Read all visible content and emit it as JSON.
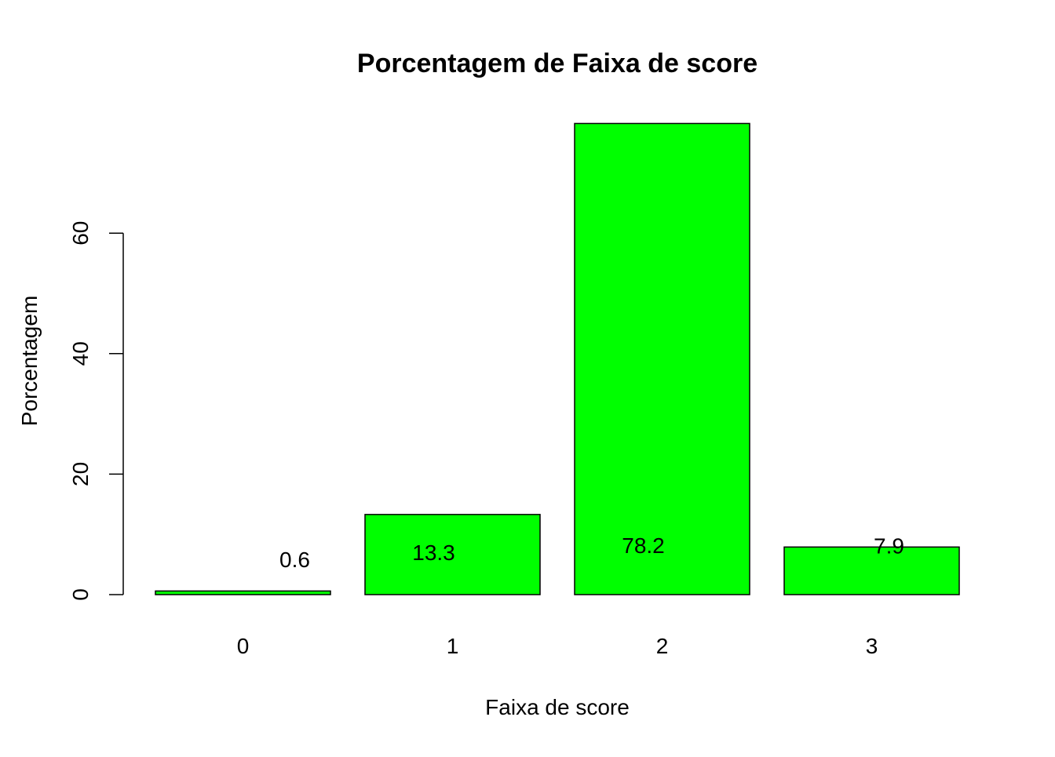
{
  "chart_data": {
    "type": "bar",
    "title": "Porcentagem de Faixa de score",
    "xlabel": "Faixa de score",
    "ylabel": "Porcentagem",
    "categories": [
      "0",
      "1",
      "2",
      "3"
    ],
    "values": [
      0.6,
      13.3,
      78.2,
      7.9
    ],
    "data_labels": [
      "0.6",
      "13.3",
      "78.2",
      "7.9"
    ],
    "y_ticks": [
      0,
      20,
      40,
      60
    ],
    "ylim": [
      0,
      78.2
    ],
    "grid": false,
    "legend": "none",
    "bar_color": "#00FF00",
    "bar_border_color": "#000000"
  }
}
